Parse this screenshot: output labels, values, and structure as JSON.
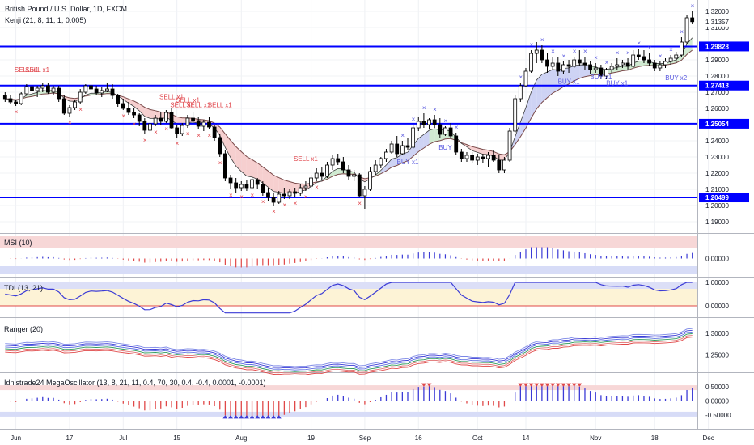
{
  "header": {
    "title": "British Pound / U.S. Dollar, 1D, FXCM",
    "indicator": "Kenji (21, 8, 11, 1, 0.005)"
  },
  "panes": {
    "msi": "MSI (10)",
    "tdi": "TDI (13, 21)",
    "ranger": "Ranger (20)",
    "mega": "Idnistrade24 MegaOscillator (13, 8, 21, 11, 0.4, 70, 30, 0.4, -0.4, 0.0001, -0.0001)"
  },
  "xaxis": {
    "labels": [
      {
        "text": "Jun",
        "bar": 2
      },
      {
        "text": "17",
        "bar": 12
      },
      {
        "text": "Jul",
        "bar": 22
      },
      {
        "text": "15",
        "bar": 32
      },
      {
        "text": "Aug",
        "bar": 44
      },
      {
        "text": "19",
        "bar": 57
      },
      {
        "text": "Sep",
        "bar": 67
      },
      {
        "text": "16",
        "bar": 77
      },
      {
        "text": "Oct",
        "bar": 88
      },
      {
        "text": "14",
        "bar": 97
      },
      {
        "text": "Nov",
        "bar": 110
      },
      {
        "text": "18",
        "bar": 121
      },
      {
        "text": "Dec",
        "bar": 131
      }
    ]
  },
  "axes": {
    "main": {
      "ticks": [
        "1.32000",
        "1.31000",
        "1.29000",
        "1.28000",
        "1.27000",
        "1.26000",
        "1.24000",
        "1.23000",
        "1.22000",
        "1.21000",
        "1.20000",
        "1.19000"
      ]
    },
    "msi": {
      "ticks": [
        "0.00000"
      ]
    },
    "tdi": {
      "ticks": [
        "1.00000",
        "0.00000"
      ]
    },
    "ranger": {
      "ticks": [
        "1.30000",
        "1.25000"
      ]
    },
    "mega": {
      "ticks": [
        "0.50000",
        "0.00000",
        "-0.50000"
      ]
    }
  },
  "price_label": "1.31357",
  "levels": [
    {
      "text": "1.29828"
    },
    {
      "text": "1.27413"
    },
    {
      "text": "1.25054"
    },
    {
      "text": "1.20499"
    }
  ],
  "signals": [
    {
      "text": "SELL x1",
      "bar": 4,
      "price": 1.2825,
      "type": "sell"
    },
    {
      "text": "SELL x1",
      "bar": 6,
      "price": 1.2825,
      "type": "sell"
    },
    {
      "text": "SELL x1",
      "bar": 31,
      "price": 1.2658,
      "type": "sell"
    },
    {
      "text": "SELL x1",
      "bar": 34,
      "price": 1.2638,
      "type": "sell"
    },
    {
      "text": "SELL x1",
      "bar": 33,
      "price": 1.2608,
      "type": "sell"
    },
    {
      "text": "SELL x1",
      "bar": 36,
      "price": 1.2608,
      "type": "sell"
    },
    {
      "text": "SELL x1",
      "bar": 40,
      "price": 1.2608,
      "type": "sell"
    },
    {
      "text": "SELL x1",
      "bar": 56,
      "price": 1.2275,
      "type": "sell"
    },
    {
      "text": "BUY x1",
      "bar": 75,
      "price": 1.2255,
      "type": "buy"
    },
    {
      "text": "BUY",
      "bar": 82,
      "price": 1.2345,
      "type": "buy"
    },
    {
      "text": "BUY x1",
      "bar": 105,
      "price": 1.2752,
      "type": "buy"
    },
    {
      "text": "BUY x1",
      "bar": 111,
      "price": 1.278,
      "type": "buy"
    },
    {
      "text": "BUY x1",
      "bar": 114,
      "price": 1.2742,
      "type": "buy"
    },
    {
      "text": "BUY x2",
      "bar": 125,
      "price": 1.2775,
      "type": "buy"
    }
  ],
  "colors": {
    "up": "#ffffff",
    "down": "#000000",
    "level": "#0000ff",
    "sell": "#e0444a",
    "buy": "#5a5ae0",
    "cloud_down": "#f4c7c7",
    "cloud_up": "#c8e6c9",
    "cloud_blue": "#c5cbf2",
    "price_bg": "#ffffff",
    "level_bg": "#0000ff"
  },
  "chart_data": [
    {
      "type": "candlestick",
      "title": "British Pound / U.S. Dollar, 1D, FXCM",
      "ylim": [
        1.185,
        1.325
      ],
      "levels": [
        1.29828,
        1.27413,
        1.25054,
        1.20499
      ],
      "last_price": 1.31357,
      "ohlc": [
        [
          1.268,
          1.27,
          1.264,
          1.266
        ],
        [
          1.266,
          1.268,
          1.2625,
          1.264
        ],
        [
          1.264,
          1.2655,
          1.2615,
          1.263
        ],
        [
          1.263,
          1.27,
          1.262,
          1.269
        ],
        [
          1.269,
          1.275,
          1.268,
          1.2735
        ],
        [
          1.2735,
          1.276,
          1.269,
          1.271
        ],
        [
          1.271,
          1.274,
          1.267,
          1.2725
        ],
        [
          1.2725,
          1.276,
          1.27,
          1.274
        ],
        [
          1.274,
          1.2755,
          1.269,
          1.27
        ],
        [
          1.27,
          1.274,
          1.268,
          1.2725
        ],
        [
          1.2725,
          1.274,
          1.264,
          1.266
        ],
        [
          1.266,
          1.268,
          1.256,
          1.257
        ],
        [
          1.257,
          1.262,
          1.255,
          1.2605
        ],
        [
          1.2605,
          1.265,
          1.259,
          1.264
        ],
        [
          1.264,
          1.272,
          1.263,
          1.27
        ],
        [
          1.27,
          1.275,
          1.269,
          1.274
        ],
        [
          1.274,
          1.278,
          1.27,
          1.272
        ],
        [
          1.272,
          1.274,
          1.268,
          1.2695
        ],
        [
          1.2695,
          1.273,
          1.267,
          1.271
        ],
        [
          1.271,
          1.276,
          1.27,
          1.272
        ],
        [
          1.272,
          1.275,
          1.266,
          1.268
        ],
        [
          1.268,
          1.269,
          1.261,
          1.263
        ],
        [
          1.263,
          1.266,
          1.259,
          1.26
        ],
        [
          1.26,
          1.264,
          1.256,
          1.2575
        ],
        [
          1.2575,
          1.26,
          1.254,
          1.256
        ],
        [
          1.256,
          1.257,
          1.249,
          1.252
        ],
        [
          1.252,
          1.254,
          1.244,
          1.2465
        ],
        [
          1.2465,
          1.252,
          1.245,
          1.2505
        ],
        [
          1.2505,
          1.256,
          1.249,
          1.254
        ],
        [
          1.254,
          1.258,
          1.25,
          1.252
        ],
        [
          1.252,
          1.259,
          1.251,
          1.2575
        ],
        [
          1.2575,
          1.26,
          1.247,
          1.248
        ],
        [
          1.248,
          1.25,
          1.242,
          1.2445
        ],
        [
          1.2445,
          1.251,
          1.243,
          1.2495
        ],
        [
          1.2495,
          1.256,
          1.248,
          1.254
        ],
        [
          1.254,
          1.258,
          1.251,
          1.2525
        ],
        [
          1.2525,
          1.255,
          1.247,
          1.249
        ],
        [
          1.249,
          1.253,
          1.246,
          1.2515
        ],
        [
          1.2515,
          1.255,
          1.247,
          1.2485
        ],
        [
          1.2485,
          1.25,
          1.24,
          1.242
        ],
        [
          1.242,
          1.244,
          1.23,
          1.232
        ],
        [
          1.232,
          1.234,
          1.215,
          1.217
        ],
        [
          1.217,
          1.219,
          1.21,
          1.214
        ],
        [
          1.214,
          1.217,
          1.208,
          1.211
        ],
        [
          1.211,
          1.215,
          1.209,
          1.213
        ],
        [
          1.213,
          1.216,
          1.209,
          1.211
        ],
        [
          1.211,
          1.218,
          1.21,
          1.216
        ],
        [
          1.216,
          1.217,
          1.21,
          1.213
        ],
        [
          1.213,
          1.215,
          1.206,
          1.208
        ],
        [
          1.208,
          1.211,
          1.203,
          1.205
        ],
        [
          1.205,
          1.208,
          1.2,
          1.202
        ],
        [
          1.202,
          1.209,
          1.201,
          1.207
        ],
        [
          1.207,
          1.211,
          1.204,
          1.206
        ],
        [
          1.206,
          1.21,
          1.204,
          1.2085
        ],
        [
          1.2085,
          1.211,
          1.205,
          1.2075
        ],
        [
          1.2075,
          1.213,
          1.206,
          1.211
        ],
        [
          1.211,
          1.215,
          1.209,
          1.212
        ],
        [
          1.212,
          1.219,
          1.21,
          1.217
        ],
        [
          1.217,
          1.223,
          1.215,
          1.22
        ],
        [
          1.22,
          1.224,
          1.216,
          1.218
        ],
        [
          1.218,
          1.227,
          1.217,
          1.225
        ],
        [
          1.225,
          1.231,
          1.222,
          1.229
        ],
        [
          1.229,
          1.232,
          1.225,
          1.227
        ],
        [
          1.227,
          1.23,
          1.22,
          1.222
        ],
        [
          1.222,
          1.225,
          1.216,
          1.218
        ],
        [
          1.218,
          1.222,
          1.215,
          1.219
        ],
        [
          1.219,
          1.22,
          1.205,
          1.206
        ],
        [
          1.206,
          1.212,
          1.198,
          1.21
        ],
        [
          1.21,
          1.224,
          1.209,
          1.221
        ],
        [
          1.221,
          1.228,
          1.219,
          1.225
        ],
        [
          1.225,
          1.23,
          1.223,
          1.229
        ],
        [
          1.229,
          1.235,
          1.227,
          1.233
        ],
        [
          1.233,
          1.24,
          1.232,
          1.238
        ],
        [
          1.238,
          1.243,
          1.23,
          1.232
        ],
        [
          1.232,
          1.24,
          1.231,
          1.237
        ],
        [
          1.237,
          1.242,
          1.234,
          1.236
        ],
        [
          1.236,
          1.25,
          1.235,
          1.248
        ],
        [
          1.248,
          1.255,
          1.246,
          1.252
        ],
        [
          1.252,
          1.257,
          1.248,
          1.25
        ],
        [
          1.25,
          1.254,
          1.247,
          1.253
        ],
        [
          1.253,
          1.256,
          1.248,
          1.25
        ],
        [
          1.25,
          1.254,
          1.242,
          1.244
        ],
        [
          1.244,
          1.249,
          1.243,
          1.248
        ],
        [
          1.248,
          1.251,
          1.242,
          1.243
        ],
        [
          1.243,
          1.245,
          1.231,
          1.233
        ],
        [
          1.233,
          1.235,
          1.227,
          1.229
        ],
        [
          1.229,
          1.233,
          1.227,
          1.231
        ],
        [
          1.231,
          1.233,
          1.226,
          1.228
        ],
        [
          1.228,
          1.232,
          1.225,
          1.23
        ],
        [
          1.23,
          1.232,
          1.226,
          1.229
        ],
        [
          1.229,
          1.233,
          1.224,
          1.231
        ],
        [
          1.231,
          1.234,
          1.227,
          1.228
        ],
        [
          1.228,
          1.231,
          1.22,
          1.222
        ],
        [
          1.222,
          1.23,
          1.22,
          1.228
        ],
        [
          1.228,
          1.248,
          1.227,
          1.246
        ],
        [
          1.246,
          1.268,
          1.245,
          1.266
        ],
        [
          1.266,
          1.276,
          1.264,
          1.274
        ],
        [
          1.274,
          1.285,
          1.273,
          1.283
        ],
        [
          1.283,
          1.296,
          1.282,
          1.294
        ],
        [
          1.294,
          1.301,
          1.288,
          1.296
        ],
        [
          1.296,
          1.299,
          1.288,
          1.29
        ],
        [
          1.29,
          1.294,
          1.282,
          1.286
        ],
        [
          1.286,
          1.292,
          1.284,
          1.288
        ],
        [
          1.288,
          1.292,
          1.28,
          1.283
        ],
        [
          1.283,
          1.289,
          1.281,
          1.287
        ],
        [
          1.287,
          1.29,
          1.282,
          1.286
        ],
        [
          1.286,
          1.292,
          1.285,
          1.29
        ],
        [
          1.29,
          1.296,
          1.286,
          1.288
        ],
        [
          1.288,
          1.292,
          1.284,
          1.287
        ],
        [
          1.287,
          1.289,
          1.281,
          1.284
        ],
        [
          1.284,
          1.288,
          1.282,
          1.285
        ],
        [
          1.285,
          1.287,
          1.278,
          1.28
        ],
        [
          1.28,
          1.285,
          1.278,
          1.284
        ],
        [
          1.284,
          1.288,
          1.282,
          1.286
        ],
        [
          1.286,
          1.291,
          1.284,
          1.287
        ],
        [
          1.287,
          1.29,
          1.285,
          1.288
        ],
        [
          1.288,
          1.291,
          1.284,
          1.286
        ],
        [
          1.286,
          1.296,
          1.285,
          1.293
        ],
        [
          1.293,
          1.297,
          1.29,
          1.292
        ],
        [
          1.292,
          1.296,
          1.288,
          1.29
        ],
        [
          1.29,
          1.294,
          1.286,
          1.288
        ],
        [
          1.288,
          1.29,
          1.283,
          1.285
        ],
        [
          1.285,
          1.289,
          1.283,
          1.287
        ],
        [
          1.287,
          1.291,
          1.285,
          1.289
        ],
        [
          1.289,
          1.293,
          1.287,
          1.291
        ],
        [
          1.291,
          1.295,
          1.288,
          1.293
        ],
        [
          1.293,
          1.304,
          1.292,
          1.301
        ],
        [
          1.301,
          1.318,
          1.3,
          1.316
        ],
        [
          1.316,
          1.32,
          1.312,
          1.3136
        ]
      ]
    },
    {
      "type": "bar",
      "title": "MSI (10)",
      "ylim": [
        -0.6,
        0.6
      ],
      "values": []
    },
    {
      "type": "line",
      "title": "TDI (13, 21)",
      "ylim": [
        -0.4,
        1.2
      ]
    },
    {
      "type": "line",
      "title": "Ranger (20)",
      "ylim": [
        1.19,
        1.33
      ]
    },
    {
      "type": "bar",
      "title": "Idnistrade24 MegaOscillator (13, 8, 21, 11, 0.4, 70, 30, 0.4, -0.4, 0.0001, -0.0001)",
      "ylim": [
        -0.8,
        0.8
      ]
    }
  ]
}
